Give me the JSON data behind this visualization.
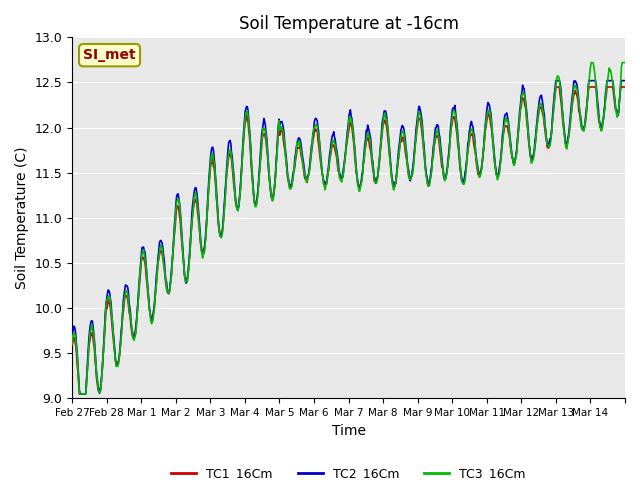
{
  "title": "Soil Temperature at -16cm",
  "xlabel": "Time",
  "ylabel": "Soil Temperature (C)",
  "ylim": [
    9.0,
    13.0
  ],
  "yticks": [
    9.0,
    9.5,
    10.0,
    10.5,
    11.0,
    11.5,
    12.0,
    12.5,
    13.0
  ],
  "date_labels": [
    "Feb 27",
    "Feb 28",
    "Mar 1",
    "Mar 2",
    "Mar 3",
    "Mar 4",
    "Mar 5",
    "Mar 6",
    "Mar 7",
    "Mar 8",
    "Mar 9",
    "Mar 10",
    "Mar 11",
    "Mar 12",
    "Mar 13",
    "Mar 14"
  ],
  "legend_labels": [
    "TC1_16Cm",
    "TC2_16Cm",
    "TC3_16Cm"
  ],
  "line_colors": [
    "#cc0000",
    "#0000cc",
    "#00bb00"
  ],
  "line_width": 1.2,
  "bg_color": "#e8e8e8",
  "annotation_text": "SI_met",
  "annotation_color": "#990000",
  "annotation_bg": "#ffffcc",
  "annotation_border": "#999900"
}
